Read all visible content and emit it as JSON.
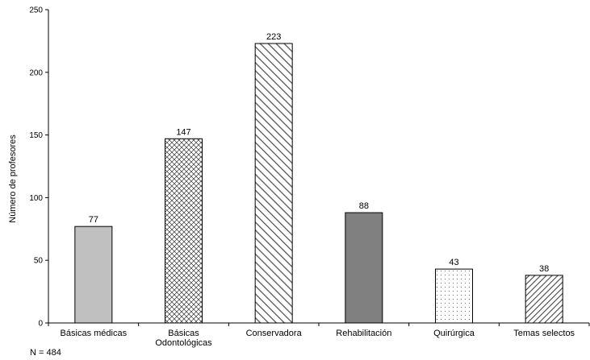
{
  "chart_data": {
    "type": "bar",
    "ylabel": "Número de profesores",
    "ylim": [
      0,
      250
    ],
    "yticks": [
      0,
      50,
      100,
      150,
      200,
      250
    ],
    "categories": [
      [
        "Básicas médicas"
      ],
      [
        "Básicas",
        "Odontológicas"
      ],
      [
        "Conservadora"
      ],
      [
        "Rehabilitación"
      ],
      [
        "Quirúrgica"
      ],
      [
        "Temas selectos"
      ]
    ],
    "values": [
      77,
      147,
      223,
      88,
      43,
      38
    ],
    "bar_fills": [
      "solid-light-gray",
      "crosshatch",
      "diagonal-stripes",
      "solid-dark-gray",
      "dots",
      "dense-diagonal-stripes"
    ],
    "colors": {
      "light_gray": "#c0c0c0",
      "dark_gray": "#808080",
      "stroke": "#000000"
    },
    "grid": false,
    "legend": "none"
  },
  "note": "N = 484"
}
